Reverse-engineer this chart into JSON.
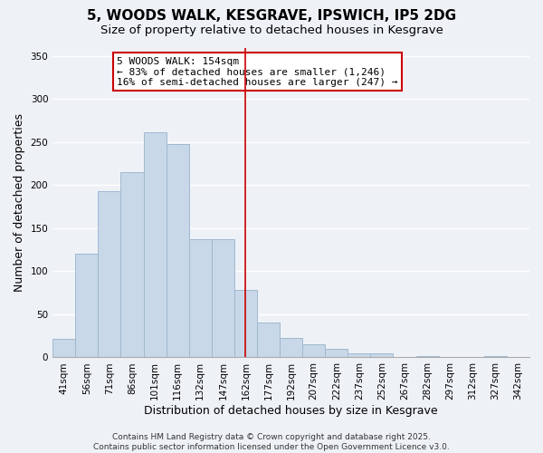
{
  "title": "5, WOODS WALK, KESGRAVE, IPSWICH, IP5 2DG",
  "subtitle": "Size of property relative to detached houses in Kesgrave",
  "xlabel": "Distribution of detached houses by size in Kesgrave",
  "ylabel": "Number of detached properties",
  "bar_color": "#c8d8e8",
  "bar_edge_color": "#a0b8d0",
  "background_color": "#eef2f7",
  "categories": [
    "41sqm",
    "56sqm",
    "71sqm",
    "86sqm",
    "101sqm",
    "116sqm",
    "132sqm",
    "147sqm",
    "162sqm",
    "177sqm",
    "192sqm",
    "207sqm",
    "222sqm",
    "237sqm",
    "252sqm",
    "267sqm",
    "282sqm",
    "297sqm",
    "312sqm",
    "327sqm",
    "342sqm"
  ],
  "values": [
    22,
    120,
    193,
    215,
    262,
    248,
    137,
    137,
    78,
    41,
    23,
    15,
    10,
    5,
    5,
    0,
    2,
    0,
    0,
    2,
    0
  ],
  "ylim": [
    0,
    360
  ],
  "yticks": [
    0,
    50,
    100,
    150,
    200,
    250,
    300,
    350
  ],
  "vline_x": 8.0,
  "vline_color": "#cc0000",
  "annotation_title": "5 WOODS WALK: 154sqm",
  "annotation_line1": "← 83% of detached houses are smaller (1,246)",
  "annotation_line2": "16% of semi-detached houses are larger (247) →",
  "footer_line1": "Contains HM Land Registry data © Crown copyright and database right 2025.",
  "footer_line2": "Contains public sector information licensed under the Open Government Licence v3.0.",
  "grid_color": "#ffffff",
  "title_fontsize": 11,
  "subtitle_fontsize": 9.5,
  "axis_label_fontsize": 9,
  "tick_fontsize": 7.5,
  "footer_fontsize": 6.5,
  "annotation_fontsize": 8
}
